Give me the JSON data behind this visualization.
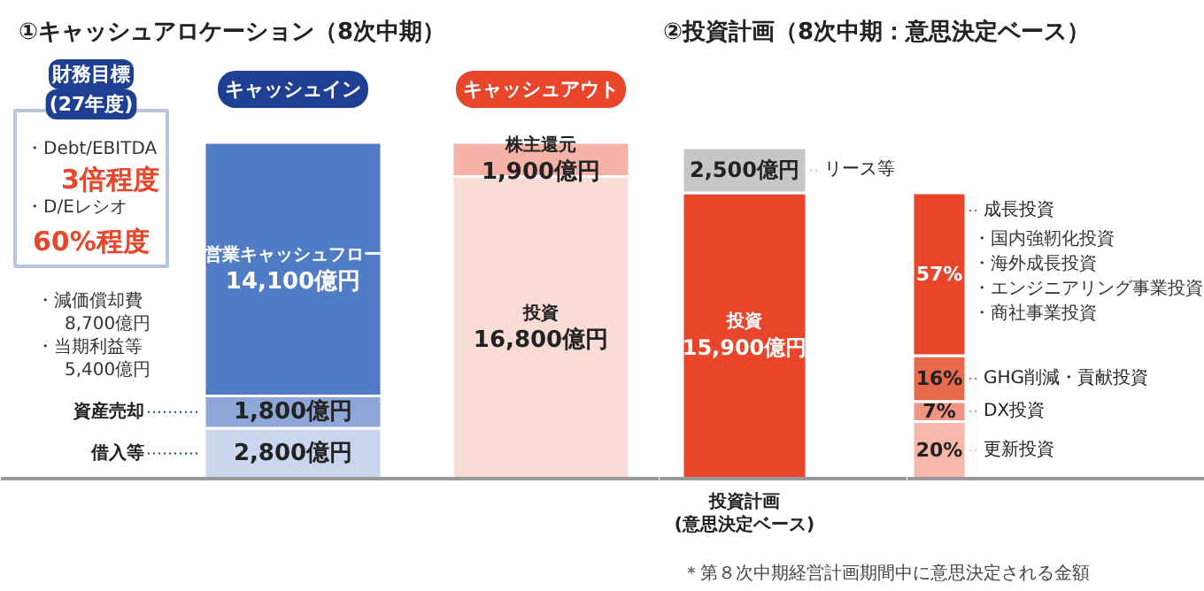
{
  "chart_data": [
    {
      "type": "bar",
      "stacked": true,
      "title": "①キャッシュアロケーション（8次中期）",
      "categories": [
        "キャッシュイン",
        "キャッシュアウト"
      ],
      "tick_labels": false,
      "series": [
        {
          "name": "借入等",
          "color": "#c9d6ee",
          "values": [
            2800,
            null
          ],
          "value_labels": [
            "2,800億円",
            null
          ]
        },
        {
          "name": "資産売却",
          "color": "#8ea7d8",
          "values": [
            1800,
            null
          ],
          "value_labels": [
            "1,800億円",
            null
          ]
        },
        {
          "name": "営業キャッシュフロー",
          "color": "#4f7cc4",
          "values": [
            14100,
            null
          ],
          "value_labels": [
            "14,100億円",
            null
          ]
        },
        {
          "name": "投資",
          "color": "#fadcd6",
          "values": [
            null,
            16800
          ],
          "value_labels": [
            null,
            "16,800億円"
          ]
        },
        {
          "name": "株主還元",
          "color": "#f4b3a6",
          "values": [
            null,
            1900
          ],
          "value_labels": [
            null,
            "1,900億円"
          ]
        }
      ],
      "annotations": [
        "財務目標",
        "(27年度)",
        "・Debt/EBITDA",
        "3倍程度",
        "・D/Eレシオ",
        "60%程度",
        "・減価償却費",
        "8,700億円",
        "・当期利益等",
        "5,400億円"
      ]
    },
    {
      "type": "other",
      "title": "②投資計画（8次中期：意思決定ベース）"
    },
    {
      "type": "bar",
      "stacked": true,
      "categories": [
        "投資計画(意思決定ベース)"
      ],
      "tick_labels": false,
      "legend": "right",
      "series": [
        {
          "name": "投資",
          "color": "#e8452a",
          "values": [
            15900
          ],
          "value_labels": [
            "15,900億円"
          ]
        },
        {
          "name": "リース等",
          "color": "#c8c6c4",
          "values": [
            2500
          ],
          "value_labels": [
            "2,500億円"
          ]
        }
      ]
    },
    {
      "type": "bar",
      "stacked": true,
      "categories": [
        null
      ],
      "tick_labels": false,
      "legend": "right",
      "series": [
        {
          "name": "更新投資",
          "color": "#f5b8aa",
          "values": [
            20
          ],
          "value_labels": [
            "20%"
          ]
        },
        {
          "name": "DX投資",
          "color": "#ef9580",
          "values": [
            7
          ],
          "value_labels": [
            "7%"
          ]
        },
        {
          "name": "GHG削減・貢献投資",
          "color": "#e86a4c",
          "values": [
            16
          ],
          "value_labels": [
            "16%"
          ]
        },
        {
          "name": "成長投資",
          "color": "#e8452a",
          "values": [
            57
          ],
          "value_labels": [
            "57%"
          ]
        }
      ],
      "annotations": [
        "・国内強靭化投資",
        "・海外成長投資",
        "・エンジニアリング事業投資",
        "・商社事業投資"
      ]
    },
    {
      "type": "other",
      "annotations": [
        "＊第８次中期経営計画期間中に意思決定される金額"
      ]
    }
  ]
}
